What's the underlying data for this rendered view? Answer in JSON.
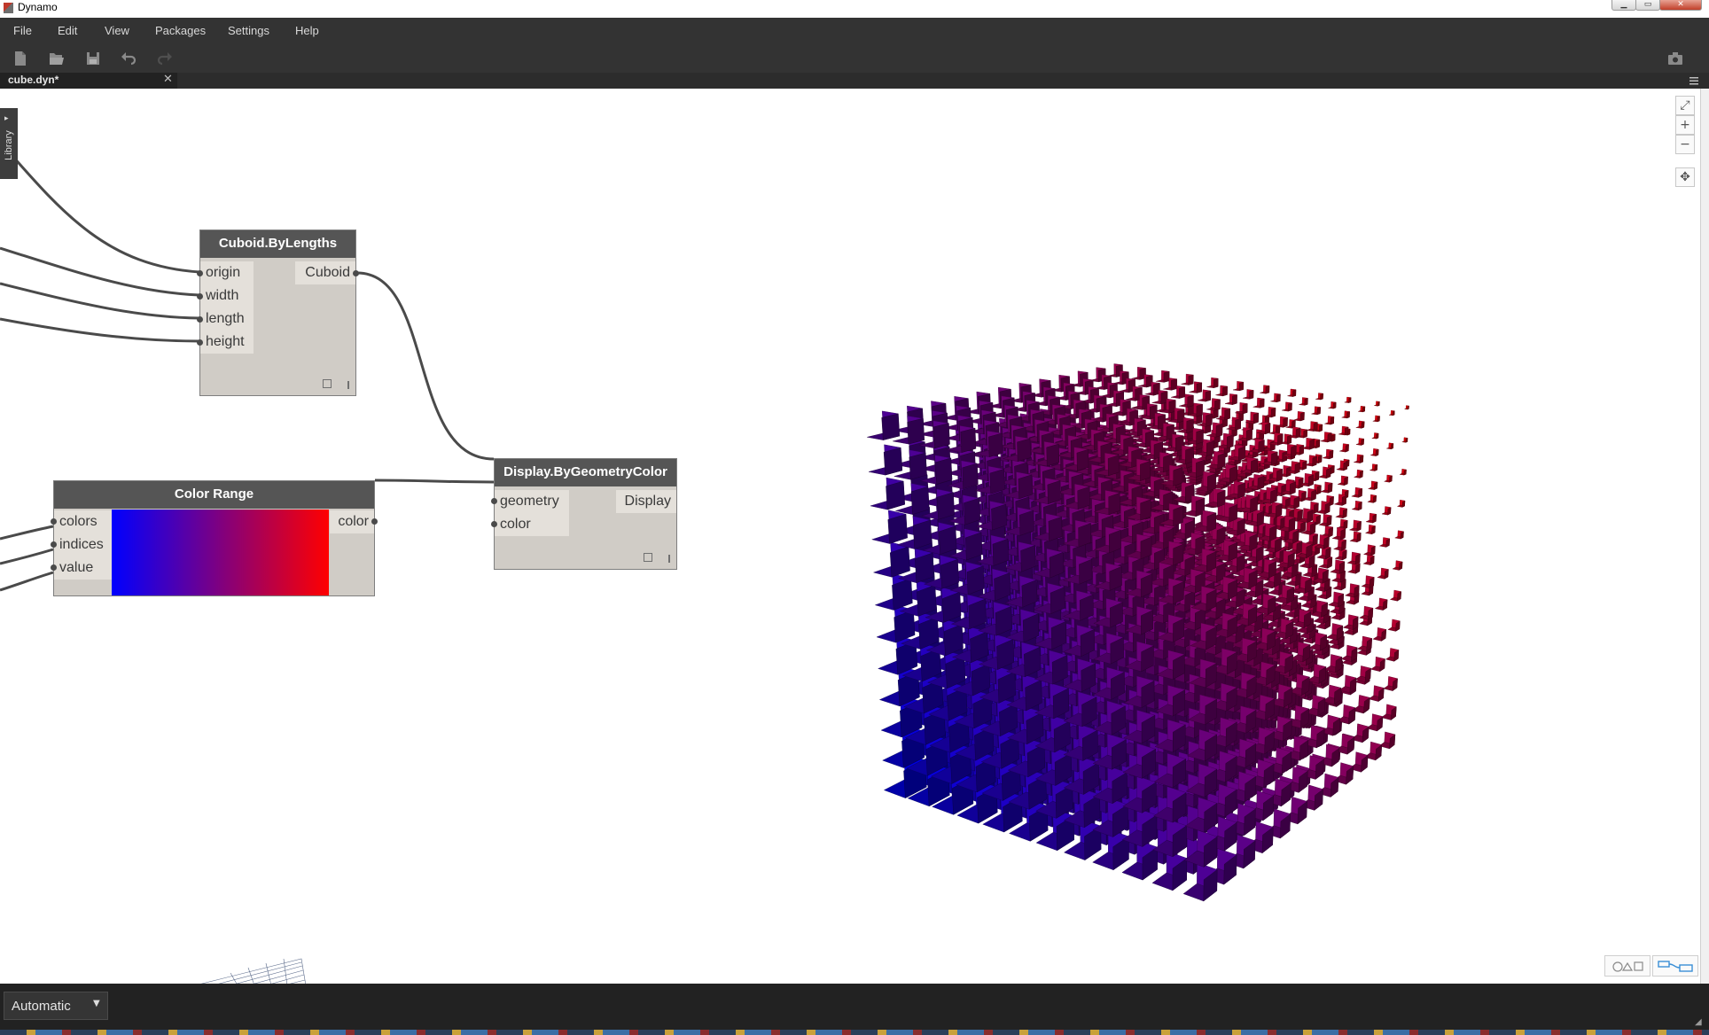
{
  "window": {
    "title": "Dynamo"
  },
  "menu": [
    "File",
    "Edit",
    "View",
    "Packages",
    "Settings",
    "Help"
  ],
  "toolbar": {
    "icons": [
      "new-file-icon",
      "open-file-icon",
      "save-icon",
      "undo-icon",
      "redo-icon",
      "screenshot-icon"
    ]
  },
  "tab": {
    "name": "cube.dyn*",
    "close": "✕"
  },
  "library": {
    "label": "Library",
    "arrow": "▸"
  },
  "nodes": {
    "cuboid": {
      "title": "Cuboid.ByLengths",
      "inputs": [
        "origin",
        "width",
        "length",
        "height"
      ],
      "output": "Cuboid"
    },
    "color_range": {
      "title": "Color Range",
      "inputs": [
        "colors",
        "indices",
        "value"
      ],
      "output": "color",
      "gradient": [
        "#0000ff",
        "#ff0000"
      ]
    },
    "display": {
      "title": "Display.ByGeometryColor",
      "inputs": [
        "geometry",
        "color"
      ],
      "output": "Display"
    }
  },
  "view_controls": {
    "zoom_in": "+",
    "zoom_out": "−",
    "fit": "⤢",
    "pan": "✥"
  },
  "run": {
    "mode": "Automatic",
    "arrow": "▼"
  },
  "colors": {
    "dark_chrome": "#333333",
    "node_header": "#555555",
    "node_body": "#d0ccc6",
    "geometry_near": "#e60000",
    "geometry_far": "#0000e0"
  }
}
